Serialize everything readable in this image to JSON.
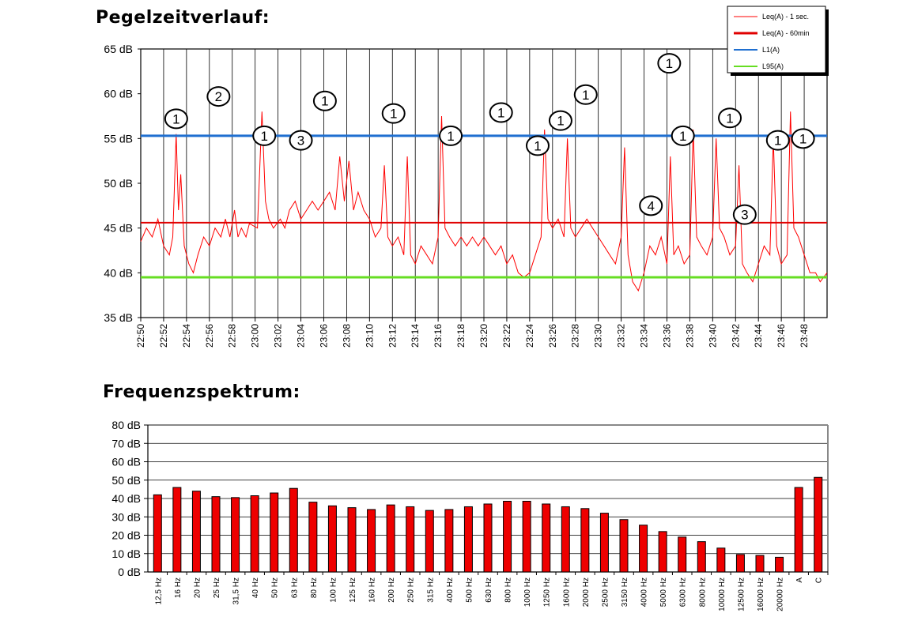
{
  "titles": {
    "time_chart": "Pegelzeitverlauf:",
    "spectrum_chart": "Frequenzspektrum:"
  },
  "colors": {
    "leq_1s": "#ff0000",
    "leq_60": "#e00000",
    "l1": "#1f6fd0",
    "l95": "#66dd22",
    "bar": "#ee0000",
    "bar_edge": "#000000"
  },
  "chart_data": [
    {
      "type": "line",
      "title": "Pegelzeitverlauf:",
      "ylim": [
        35,
        65
      ],
      "yticks": [
        "35 dB",
        "40 dB",
        "45 dB",
        "50 dB",
        "55 dB",
        "60 dB",
        "65 dB"
      ],
      "xticks": [
        "22:50",
        "22:52",
        "22:54",
        "22:56",
        "22:58",
        "23:00",
        "23:02",
        "23:04",
        "23:06",
        "23:08",
        "23:10",
        "23:12",
        "23:14",
        "23:16",
        "23:18",
        "23:20",
        "23:22",
        "23:24",
        "23:26",
        "23:28",
        "23:30",
        "23:32",
        "23:34",
        "23:36",
        "23:38",
        "23:40",
        "23:42",
        "23:44",
        "23:46",
        "23:48"
      ],
      "x_range_minutes": [
        0,
        60
      ],
      "grid": "vertical",
      "legend_position": "top-right",
      "legend": [
        "Leq(A) - 1 sec.",
        "Leq(A) - 60min",
        "L1(A)",
        "L95(A)"
      ],
      "series": [
        {
          "name": "Leq(A) - 1 sec.",
          "points": [
            [
              0,
              43.5
            ],
            [
              0.5,
              45
            ],
            [
              1,
              44
            ],
            [
              1.5,
              46
            ],
            [
              2,
              43
            ],
            [
              2.5,
              42
            ],
            [
              2.8,
              44
            ],
            [
              3.1,
              55.5
            ],
            [
              3.3,
              47
            ],
            [
              3.5,
              51
            ],
            [
              3.8,
              43
            ],
            [
              4.2,
              41
            ],
            [
              4.6,
              40
            ],
            [
              5,
              42
            ],
            [
              5.5,
              44
            ],
            [
              6,
              43
            ],
            [
              6.5,
              45
            ],
            [
              7,
              44
            ],
            [
              7.4,
              46
            ],
            [
              7.8,
              44
            ],
            [
              8.2,
              47
            ],
            [
              8.5,
              44
            ],
            [
              8.8,
              45
            ],
            [
              9.2,
              44
            ],
            [
              9.5,
              45.5
            ],
            [
              10.2,
              45
            ],
            [
              10.6,
              58
            ],
            [
              10.9,
              48
            ],
            [
              11.2,
              46
            ],
            [
              11.6,
              45
            ],
            [
              12.2,
              46
            ],
            [
              12.6,
              45
            ],
            [
              13,
              47
            ],
            [
              13.5,
              48
            ],
            [
              14,
              46
            ],
            [
              14.5,
              47
            ],
            [
              15,
              48
            ],
            [
              15.5,
              47
            ],
            [
              16,
              48
            ],
            [
              16.5,
              49
            ],
            [
              17,
              47
            ],
            [
              17.4,
              53
            ],
            [
              17.8,
              48
            ],
            [
              18.2,
              52.5
            ],
            [
              18.6,
              47
            ],
            [
              19,
              49
            ],
            [
              19.5,
              47
            ],
            [
              20,
              46
            ],
            [
              20.5,
              44
            ],
            [
              21,
              45
            ],
            [
              21.3,
              52
            ],
            [
              21.6,
              44
            ],
            [
              22,
              43
            ],
            [
              22.5,
              44
            ],
            [
              23,
              42
            ],
            [
              23.3,
              53
            ],
            [
              23.6,
              42
            ],
            [
              24,
              41
            ],
            [
              24.5,
              43
            ],
            [
              25,
              42
            ],
            [
              25.5,
              41
            ],
            [
              26,
              44
            ],
            [
              26.3,
              57.5
            ],
            [
              26.6,
              45
            ],
            [
              27,
              44
            ],
            [
              27.5,
              43
            ],
            [
              28,
              44
            ],
            [
              28.5,
              43
            ],
            [
              29,
              44
            ],
            [
              29.5,
              43
            ],
            [
              30,
              44
            ],
            [
              30.5,
              43
            ],
            [
              31,
              42
            ],
            [
              31.5,
              43
            ],
            [
              32,
              41
            ],
            [
              32.5,
              42
            ],
            [
              33,
              40
            ],
            [
              33.5,
              39.5
            ],
            [
              34,
              40
            ],
            [
              34.5,
              42
            ],
            [
              35,
              44
            ],
            [
              35.3,
              56
            ],
            [
              35.6,
              46
            ],
            [
              36,
              45
            ],
            [
              36.5,
              46
            ],
            [
              37,
              44
            ],
            [
              37.3,
              55
            ],
            [
              37.6,
              45
            ],
            [
              38,
              44
            ],
            [
              38.5,
              45
            ],
            [
              39,
              46
            ],
            [
              39.5,
              45
            ],
            [
              40,
              44
            ],
            [
              40.5,
              43
            ],
            [
              41,
              42
            ],
            [
              41.5,
              41
            ],
            [
              42,
              44
            ],
            [
              42.3,
              54
            ],
            [
              42.6,
              42
            ],
            [
              43,
              39
            ],
            [
              43.5,
              38
            ],
            [
              44,
              40
            ],
            [
              44.5,
              43
            ],
            [
              45,
              42
            ],
            [
              45.5,
              44
            ],
            [
              46,
              41
            ],
            [
              46.3,
              53
            ],
            [
              46.6,
              42
            ],
            [
              47,
              43
            ],
            [
              47.5,
              41
            ],
            [
              48,
              42
            ],
            [
              48.3,
              56
            ],
            [
              48.6,
              44
            ],
            [
              49,
              43
            ],
            [
              49.5,
              42
            ],
            [
              50,
              44
            ],
            [
              50.3,
              55
            ],
            [
              50.6,
              45
            ],
            [
              51,
              44
            ],
            [
              51.5,
              42
            ],
            [
              52,
              43
            ],
            [
              52.3,
              52
            ],
            [
              52.6,
              41
            ],
            [
              53,
              40
            ],
            [
              53.5,
              39
            ],
            [
              54,
              41
            ],
            [
              54.5,
              43
            ],
            [
              55,
              42
            ],
            [
              55.3,
              55
            ],
            [
              55.6,
              43
            ],
            [
              56,
              41
            ],
            [
              56.5,
              42
            ],
            [
              56.8,
              58
            ],
            [
              57.1,
              45
            ],
            [
              57.5,
              44
            ],
            [
              58,
              42
            ],
            [
              58.5,
              40
            ],
            [
              59,
              40
            ],
            [
              59.4,
              39
            ],
            [
              60,
              40
            ]
          ]
        },
        {
          "name": "Leq(A) - 60min",
          "value": 45.6
        },
        {
          "name": "L1(A)",
          "value": 55.3
        },
        {
          "name": "L95(A)",
          "value": 39.5
        }
      ],
      "annotations": [
        {
          "label": "1",
          "x": 3.1,
          "y": 57.2
        },
        {
          "label": "2",
          "x": 6.8,
          "y": 59.7
        },
        {
          "label": "1",
          "x": 10.8,
          "y": 55.3
        },
        {
          "label": "3",
          "x": 14.0,
          "y": 54.8
        },
        {
          "label": "1",
          "x": 16.1,
          "y": 59.2
        },
        {
          "label": "1",
          "x": 22.1,
          "y": 57.8
        },
        {
          "label": "1",
          "x": 27.1,
          "y": 55.3
        },
        {
          "label": "1",
          "x": 31.5,
          "y": 57.9
        },
        {
          "label": "1",
          "x": 34.7,
          "y": 54.2
        },
        {
          "label": "1",
          "x": 36.7,
          "y": 57.0
        },
        {
          "label": "1",
          "x": 38.9,
          "y": 59.9
        },
        {
          "label": "4",
          "x": 44.6,
          "y": 47.5
        },
        {
          "label": "1",
          "x": 46.2,
          "y": 63.4
        },
        {
          "label": "1",
          "x": 47.4,
          "y": 55.3
        },
        {
          "label": "1",
          "x": 51.5,
          "y": 57.3
        },
        {
          "label": "3",
          "x": 52.8,
          "y": 46.5
        },
        {
          "label": "1",
          "x": 55.7,
          "y": 54.8
        },
        {
          "label": "1",
          "x": 57.9,
          "y": 55.0
        }
      ]
    },
    {
      "type": "bar",
      "title": "Frequenzspektrum:",
      "ylim": [
        0,
        80
      ],
      "yticks": [
        "0 dB",
        "10 dB",
        "20 dB",
        "30 dB",
        "40 dB",
        "50 dB",
        "60 dB",
        "70 dB",
        "80 dB"
      ],
      "grid": "horizontal",
      "categories": [
        "12,5 Hz",
        "16 Hz",
        "20 Hz",
        "25 Hz",
        "31,5 Hz",
        "40 Hz",
        "50 Hz",
        "63 Hz",
        "80 Hz",
        "100 Hz",
        "125 Hz",
        "160 Hz",
        "200 Hz",
        "250 Hz",
        "315 Hz",
        "400 Hz",
        "500 Hz",
        "630 Hz",
        "800 Hz",
        "1000 Hz",
        "1250 Hz",
        "1600 Hz",
        "2000 Hz",
        "2500 Hz",
        "3150 Hz",
        "4000 Hz",
        "5000 Hz",
        "6300 Hz",
        "8000 Hz",
        "10000 Hz",
        "12500 Hz",
        "16000 Hz",
        "20000 Hz",
        "A",
        "C"
      ],
      "values": [
        42,
        46,
        44,
        41,
        40.5,
        41.5,
        43,
        45.5,
        38,
        36,
        35,
        34,
        36.5,
        35.5,
        33.5,
        34,
        35.5,
        37,
        38.5,
        38.5,
        37,
        35.5,
        34.5,
        32,
        28.5,
        25.5,
        22,
        19,
        16.5,
        13,
        9.5,
        9,
        8,
        46,
        51.5
      ]
    }
  ]
}
